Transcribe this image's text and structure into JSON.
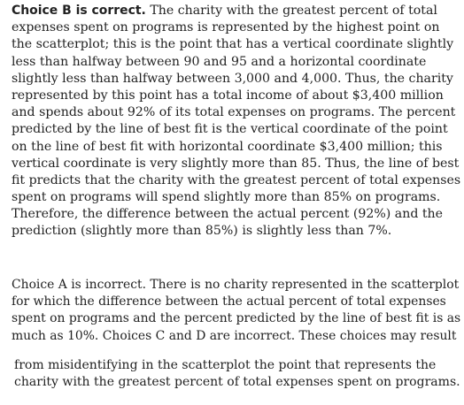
{
  "explanation": {
    "paragraph1": {
      "lead": "Choice B is correct.",
      "first_line_rest": " The charity with the greatest percent of total",
      "lines": [
        "expenses spent on programs is represented by the highest point on",
        "the scatterplot; this is the point that has a vertical coordinate slightly",
        "less than halfway between 90 and 95 and a horizontal coordinate",
        "slightly less than halfway between 3,000 and 4,000. Thus, the charity",
        "represented by this point has a total income of about $3,400 million",
        "and spends about 92% of its total expenses on programs. The percent",
        "predicted by the line of best fit is the vertical coordinate of the point",
        "on the line of best fit with horizontal coordinate $3,400 million; this",
        "vertical coordinate is very slightly more than 85. Thus, the line of best",
        "fit predicts that the charity with the greatest percent of total expenses",
        "spent on programs will spend slightly more than 85% on programs.",
        "Therefore, the difference between the actual percent (92%) and the",
        "prediction (slightly more than 85%) is slightly less than 7%."
      ]
    },
    "paragraph2": {
      "lines": [
        "Choice A is incorrect. There is no charity represented in the scatterplot",
        "for which the difference between the actual percent of total expenses",
        "spent on programs and the percent predicted by the line of best fit is as",
        "much as 10%. Choices C and D are incorrect. These choices may result"
      ]
    },
    "paragraph3": {
      "lines": [
        "from misidentifying in the scatterplot the point that represents the",
        "charity with the greatest percent of total expenses spent on programs."
      ]
    }
  }
}
